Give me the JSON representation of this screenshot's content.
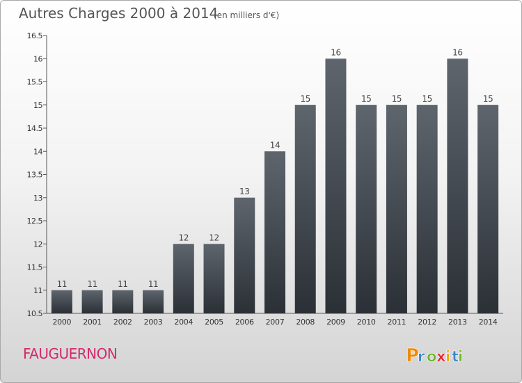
{
  "chart_data": {
    "type": "bar",
    "title": "Autres Charges 2000 à 2014",
    "subtitle": "(en milliers d'€)",
    "categories": [
      "2000",
      "2001",
      "2002",
      "2003",
      "2004",
      "2005",
      "2006",
      "2007",
      "2008",
      "2009",
      "2010",
      "2011",
      "2012",
      "2013",
      "2014"
    ],
    "values": [
      11,
      11,
      11,
      11,
      12,
      12,
      13,
      14,
      15,
      16,
      15,
      15,
      15,
      16,
      15
    ],
    "ylim": [
      10.5,
      16.5
    ],
    "yticks": [
      "10.5",
      "11",
      "11.5",
      "12",
      "12.5",
      "13",
      "13.5",
      "14",
      "14.5",
      "15",
      "15.5",
      "16",
      "16.5"
    ],
    "xlabel": "",
    "ylabel": "",
    "grid": false,
    "bar_color": "#3a4048"
  },
  "footer": {
    "commune": "FAUGUERNON",
    "brand": "Proxiti"
  },
  "colors": {
    "commune": "#d42a6a",
    "brand_letters": [
      "#f08a00",
      "#3a86c8",
      "#6fb52c",
      "#e8262f",
      "#f2a900",
      "#3a86c8",
      "#6fb52c"
    ]
  }
}
